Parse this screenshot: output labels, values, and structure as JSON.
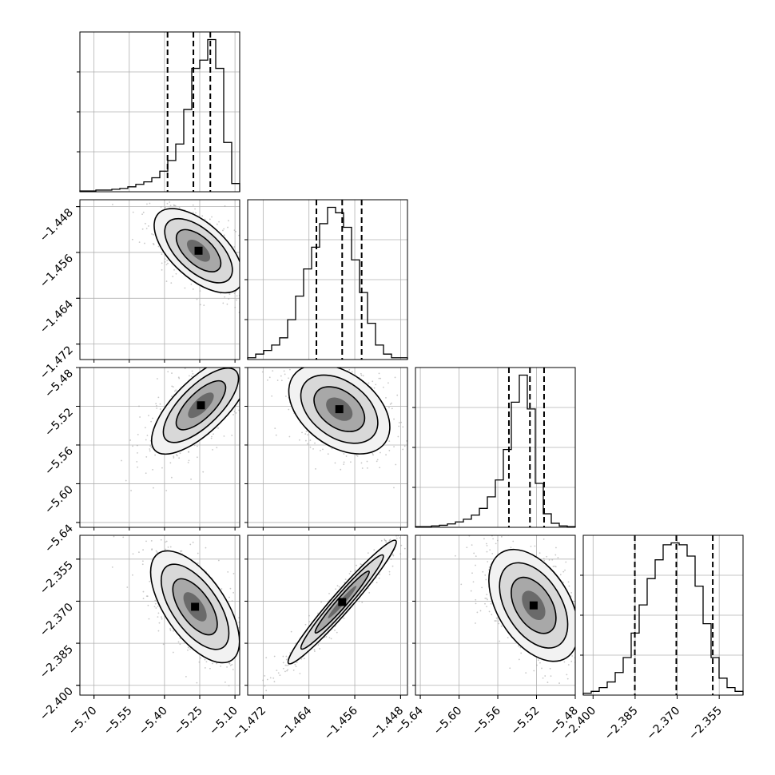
{
  "chart_data": {
    "type": "corner",
    "params": [
      {
        "ticks": [
          "−5.70",
          "−5.55",
          "−5.40",
          "−5.25",
          "−5.10"
        ],
        "tick_values": [
          -5.7,
          -5.55,
          -5.4,
          -5.25,
          -5.1
        ],
        "range": [
          -5.76,
          -5.08
        ],
        "quantiles": [
          -5.387,
          -5.277,
          -5.205
        ],
        "hist_counts": [
          1,
          1,
          2,
          2,
          3,
          4,
          6,
          9,
          12,
          17,
          25,
          38,
          58,
          100,
          150,
          160,
          185,
          150,
          60,
          10
        ]
      },
      {
        "ticks": [
          "−1.472",
          "−1.464",
          "−1.456",
          "−1.448"
        ],
        "tick_values": [
          -1.472,
          -1.464,
          -1.456,
          -1.448
        ],
        "range": [
          -1.4747,
          -1.4468
        ],
        "quantiles": [
          -1.4627,
          -1.4582,
          -1.4548
        ],
        "hist_counts": [
          1,
          3,
          5,
          8,
          12,
          22,
          35,
          50,
          62,
          75,
          84,
          81,
          73,
          55,
          37,
          20,
          8,
          3,
          1,
          1
        ]
      },
      {
        "ticks": [
          "−5.64",
          "−5.60",
          "−5.56",
          "−5.52",
          "−5.48"
        ],
        "tick_values": [
          -5.64,
          -5.6,
          -5.56,
          -5.52,
          -5.48
        ],
        "range": [
          -5.645,
          -5.48
        ],
        "quantiles": [
          -5.5485,
          -5.5268,
          -5.5122
        ],
        "hist_counts": [
          1,
          1,
          2,
          3,
          5,
          8,
          12,
          18,
          28,
          45,
          70,
          115,
          185,
          225,
          175,
          65,
          20,
          6,
          2,
          1
        ]
      },
      {
        "ticks": [
          "−2.400",
          "−2.385",
          "−2.370",
          "−2.355"
        ],
        "tick_values": [
          -2.4,
          -2.385,
          -2.37,
          -2.355
        ],
        "range": [
          -2.4035,
          -2.3465
        ],
        "quantiles": [
          -2.3851,
          -2.3703,
          -2.3573
        ],
        "hist_counts": [
          1,
          2,
          4,
          7,
          12,
          20,
          33,
          48,
          62,
          72,
          80,
          81,
          80,
          74,
          58,
          38,
          20,
          9,
          4,
          2
        ]
      }
    ],
    "pairs": [
      {
        "x": 0,
        "y": 1,
        "center": [
          -5.255,
          -1.4557
        ],
        "spread": [
          0.09,
          0.0035
        ],
        "corr": -0.6
      },
      {
        "x": 0,
        "y": 2,
        "center": [
          -5.245,
          -5.519
        ],
        "spread": [
          0.1,
          0.024
        ],
        "corr": 0.72
      },
      {
        "x": 1,
        "y": 2,
        "center": [
          -1.4587,
          -5.523
        ],
        "spread": [
          0.0042,
          0.022
        ],
        "corr": -0.4
      },
      {
        "x": 0,
        "y": 3,
        "center": [
          -5.27,
          -2.372
        ],
        "spread": [
          0.09,
          0.0095
        ],
        "corr": -0.62
      },
      {
        "x": 1,
        "y": 3,
        "center": [
          -1.4582,
          -2.3703
        ],
        "spread": [
          0.0045,
          0.0105
        ],
        "corr": 0.97
      },
      {
        "x": 2,
        "y": 3,
        "center": [
          -5.523,
          -2.3715
        ],
        "spread": [
          0.022,
          0.0095
        ],
        "corr": -0.45
      }
    ],
    "grid": true,
    "colors": {
      "frame": "#000000",
      "grid": "#b0b0b0",
      "points": "#9a9a9a",
      "hist": "#000000"
    }
  }
}
